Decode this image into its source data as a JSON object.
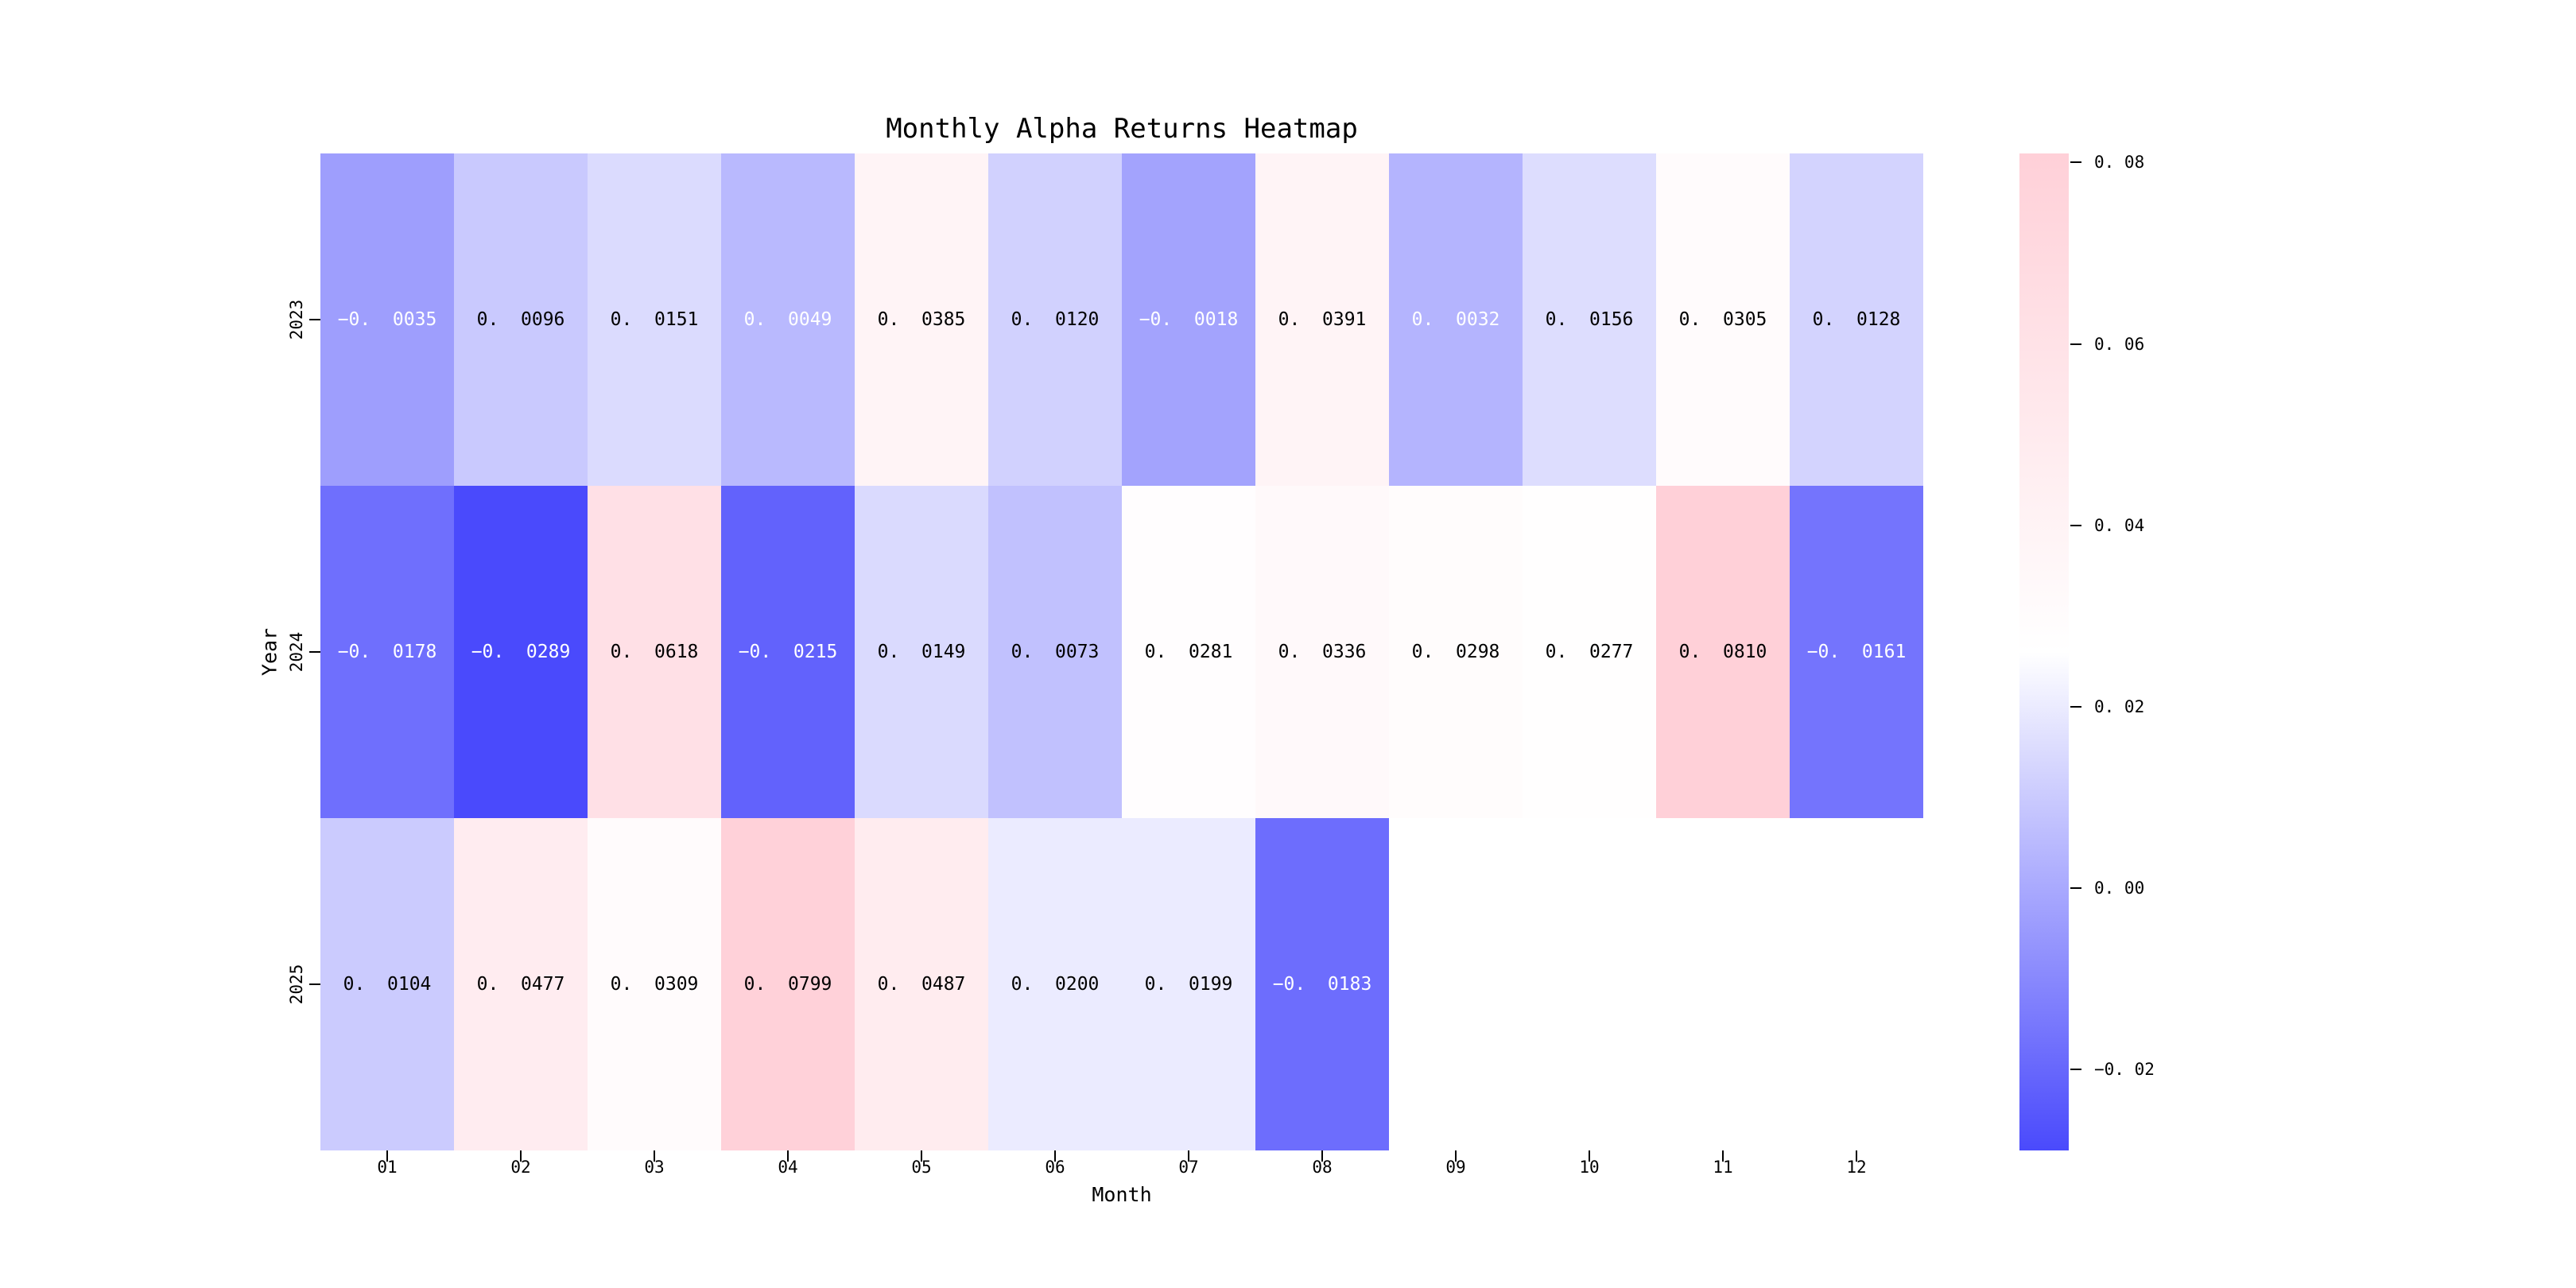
{
  "chart_data": {
    "type": "heatmap",
    "title": "Monthly Alpha Returns Heatmap",
    "xlabel": "Month",
    "ylabel": "Year",
    "x_categories": [
      "01",
      "02",
      "03",
      "04",
      "05",
      "06",
      "07",
      "08",
      "09",
      "10",
      "11",
      "12"
    ],
    "y_categories": [
      "2023",
      "2024",
      "2025"
    ],
    "rows": [
      [
        -0.0035,
        0.0096,
        0.0151,
        0.0049,
        0.0385,
        0.012,
        -0.0018,
        0.0391,
        0.0032,
        0.0156,
        0.0305,
        0.0128
      ],
      [
        -0.0178,
        -0.0289,
        0.0618,
        -0.0215,
        0.0149,
        0.0073,
        0.0281,
        0.0336,
        0.0298,
        0.0277,
        0.081,
        -0.0161
      ],
      [
        0.0104,
        0.0477,
        0.0309,
        0.0799,
        0.0487,
        0.02,
        0.0199,
        -0.0183,
        null,
        null,
        null,
        null
      ]
    ],
    "annotation_decimals": 4,
    "colorbar": {
      "tick_labels": [
        "0.08",
        "0.06",
        "0.04",
        "0.02",
        "0.00",
        "-0.02"
      ],
      "tick_values": [
        0.08,
        0.06,
        0.04,
        0.02,
        0.0,
        -0.02
      ],
      "vmin": -0.0289,
      "vmax": 0.081
    },
    "colors": {
      "negative_end": "#4a4afc",
      "midpoint": "#ffffff",
      "positive_end": "#ffd0d8",
      "annotation_dark": "#000000",
      "annotation_light": "#ffffff"
    },
    "layout_hints": {
      "grid": false,
      "legend": "colorbar-right",
      "empty_cells": "2025 months 09-12"
    }
  }
}
